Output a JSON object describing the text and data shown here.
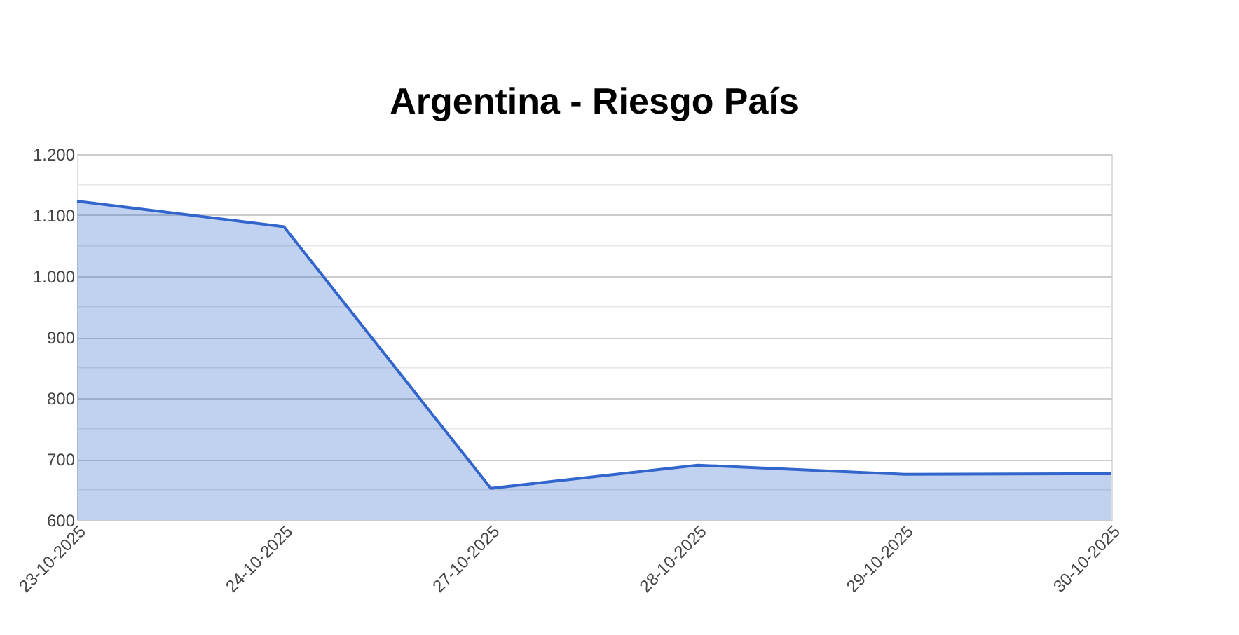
{
  "chart_data": {
    "type": "area",
    "title": "Argentina - Riesgo País",
    "categories": [
      "23-10-2025",
      "24-10-2025",
      "27-10-2025",
      "28-10-2025",
      "29-10-2025",
      "30-10-2025"
    ],
    "series": [
      {
        "color": "#3366cc",
        "values": [
          1123,
          1081,
          652,
          690,
          675,
          676
        ]
      }
    ],
    "ylim": [
      600,
      1200
    ],
    "yticks": [
      {
        "value": 600,
        "label": "600"
      },
      {
        "value": 650,
        "label": null
      },
      {
        "value": 700,
        "label": "700"
      },
      {
        "value": 750,
        "label": null
      },
      {
        "value": 800,
        "label": "800"
      },
      {
        "value": 850,
        "label": null
      },
      {
        "value": 900,
        "label": "900"
      },
      {
        "value": 950,
        "label": null
      },
      {
        "value": 1000,
        "label": "1.000"
      },
      {
        "value": 1050,
        "label": null
      },
      {
        "value": 1100,
        "label": "1.100"
      },
      {
        "value": 1150,
        "label": null
      },
      {
        "value": 1200,
        "label": "1.200"
      }
    ],
    "grid": "y"
  }
}
